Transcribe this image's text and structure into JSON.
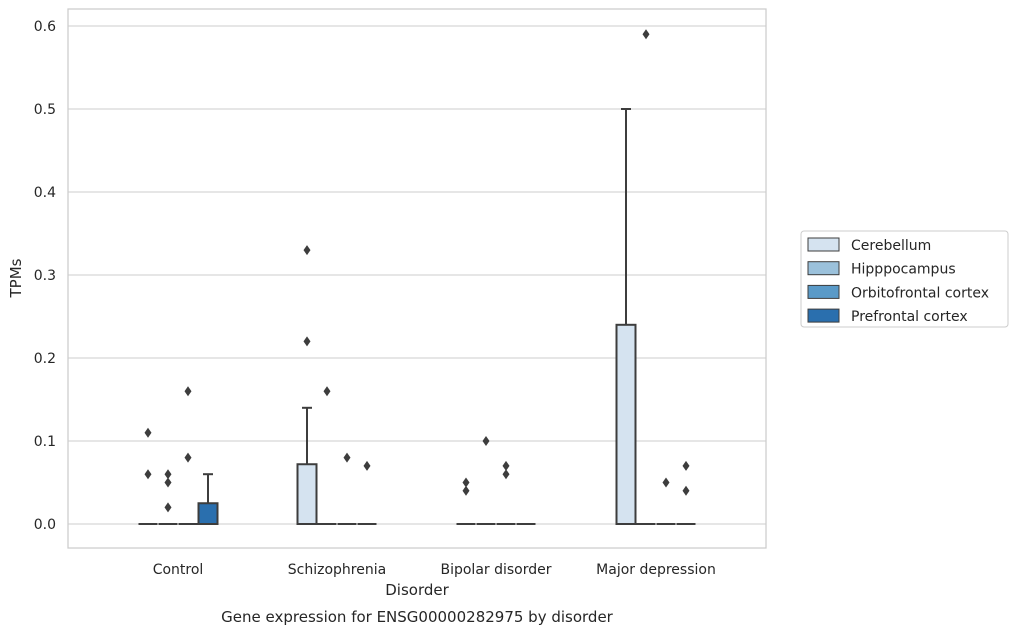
{
  "chart_data": {
    "type": "box",
    "title": "Gene expression for ENSG00000282975 by disorder",
    "xlabel": "Disorder",
    "ylabel": "TPMs",
    "ylim": [
      -0.03,
      0.62
    ],
    "yticks": [
      "0.0",
      "0.1",
      "0.2",
      "0.3",
      "0.4",
      "0.5",
      "0.6"
    ],
    "categories": [
      "Control",
      "Schizophrenia",
      "Bipolar disorder",
      "Major depression"
    ],
    "grid": "horizontal",
    "legend_position": "right",
    "series": [
      {
        "name": "Cerebellum",
        "color": "#d5e3f0",
        "boxes": [
          {
            "min": 0,
            "q1": 0,
            "median": 0,
            "q3": 0,
            "max": 0,
            "outliers": [
              0.06,
              0.11
            ]
          },
          {
            "min": 0,
            "q1": 0,
            "median": 0,
            "q3": 0.072,
            "max": 0.14,
            "outliers": [
              0.22,
              0.33
            ]
          },
          {
            "min": 0,
            "q1": 0,
            "median": 0,
            "q3": 0,
            "max": 0,
            "outliers": [
              0.04,
              0.05
            ]
          },
          {
            "min": 0,
            "q1": 0,
            "median": 0,
            "q3": 0.24,
            "max": 0.5,
            "outliers": []
          }
        ]
      },
      {
        "name": "Hipppocampus",
        "color": "#9bc1db",
        "boxes": [
          {
            "min": 0,
            "q1": 0,
            "median": 0,
            "q3": 0,
            "max": 0,
            "outliers": [
              0.02,
              0.05,
              0.06
            ]
          },
          {
            "min": 0,
            "q1": 0,
            "median": 0,
            "q3": 0,
            "max": 0,
            "outliers": [
              0.16
            ]
          },
          {
            "min": 0,
            "q1": 0,
            "median": 0,
            "q3": 0,
            "max": 0,
            "outliers": [
              0.1
            ]
          },
          {
            "min": 0,
            "q1": 0,
            "median": 0,
            "q3": 0,
            "max": 0,
            "outliers": [
              0.59
            ]
          }
        ]
      },
      {
        "name": "Orbitofrontal cortex",
        "color": "#5a9ac8",
        "boxes": [
          {
            "min": 0,
            "q1": 0,
            "median": 0,
            "q3": 0,
            "max": 0,
            "outliers": [
              0.08,
              0.16
            ]
          },
          {
            "min": 0,
            "q1": 0,
            "median": 0,
            "q3": 0,
            "max": 0,
            "outliers": [
              0.08
            ]
          },
          {
            "min": 0,
            "q1": 0,
            "median": 0,
            "q3": 0,
            "max": 0,
            "outliers": [
              0.06,
              0.07
            ]
          },
          {
            "min": 0,
            "q1": 0,
            "median": 0,
            "q3": 0,
            "max": 0,
            "outliers": [
              0.05
            ]
          }
        ]
      },
      {
        "name": "Prefrontal cortex",
        "color": "#2a6fae",
        "boxes": [
          {
            "min": 0,
            "q1": 0,
            "median": 0,
            "q3": 0.025,
            "max": 0.06,
            "outliers": []
          },
          {
            "min": 0,
            "q1": 0,
            "median": 0,
            "q3": 0,
            "max": 0,
            "outliers": [
              0.07
            ]
          },
          {
            "min": 0,
            "q1": 0,
            "median": 0,
            "q3": 0,
            "max": 0,
            "outliers": []
          },
          {
            "min": 0,
            "q1": 0,
            "median": 0,
            "q3": 0,
            "max": 0,
            "outliers": [
              0.04,
              0.07
            ]
          }
        ]
      }
    ]
  }
}
